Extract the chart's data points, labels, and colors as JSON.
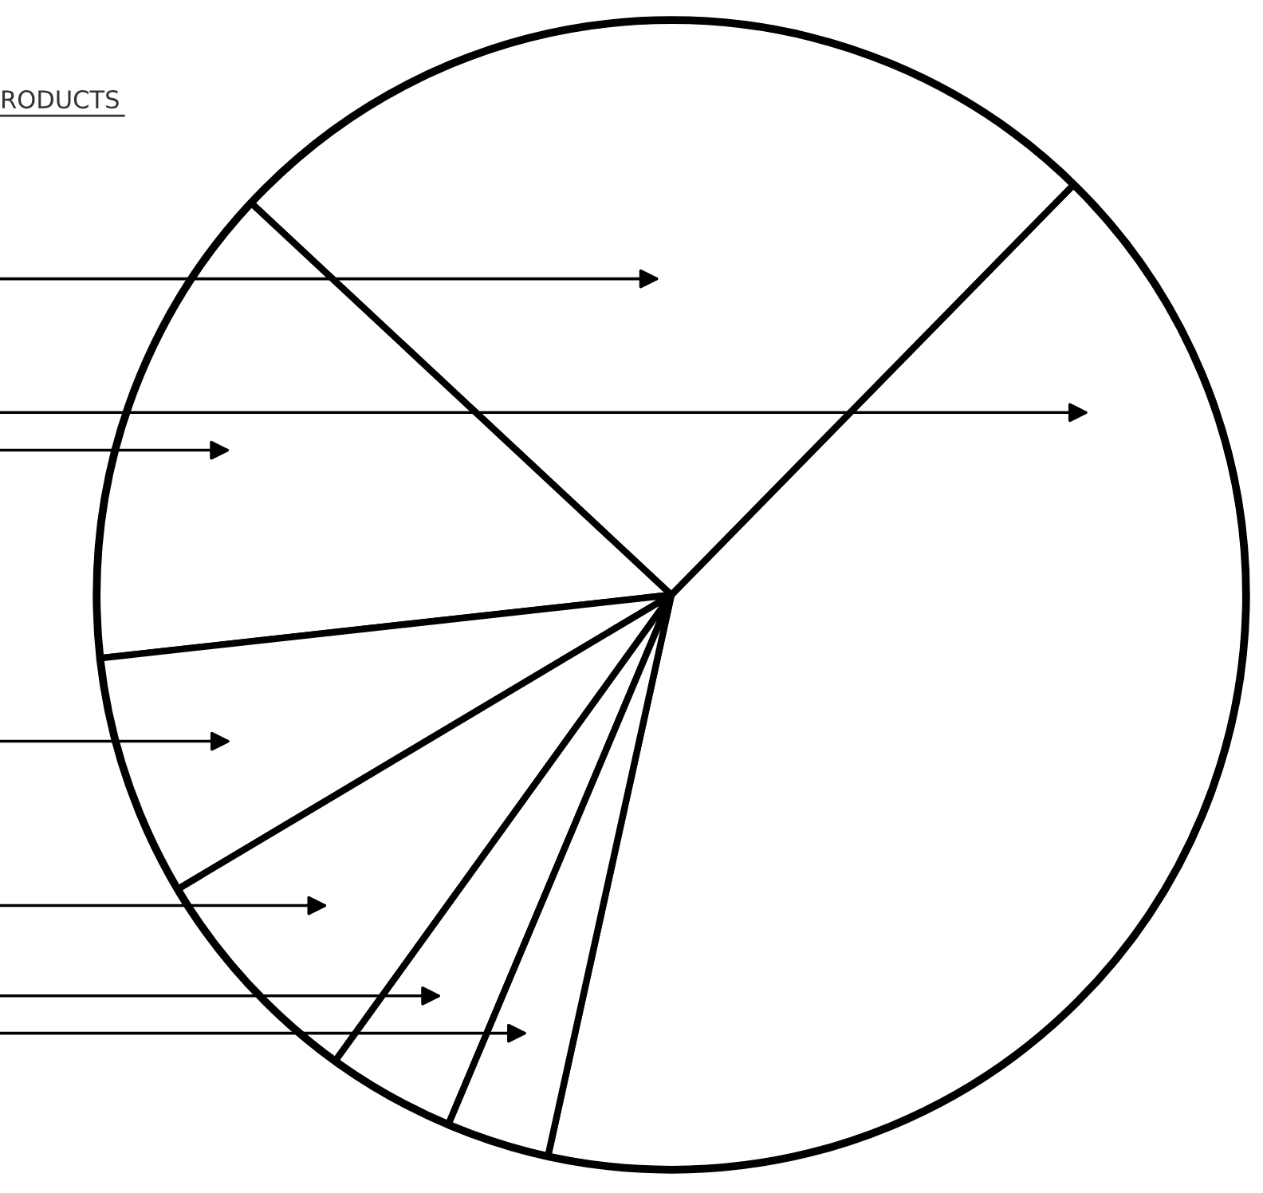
{
  "chart_data": {
    "type": "pie",
    "annotations": [
      "RODUCTS"
    ],
    "categories": [
      null,
      null,
      null,
      null,
      null,
      null,
      null
    ],
    "values": [
      41.1,
      25.4,
      13.7,
      6.8,
      6.5,
      3.6,
      2.9
    ],
    "colors": [
      "#ffffff",
      "#ffffff",
      "#ffffff",
      "#ffffff",
      "#ffffff",
      "#ffffff",
      "#ffffff"
    ]
  }
}
